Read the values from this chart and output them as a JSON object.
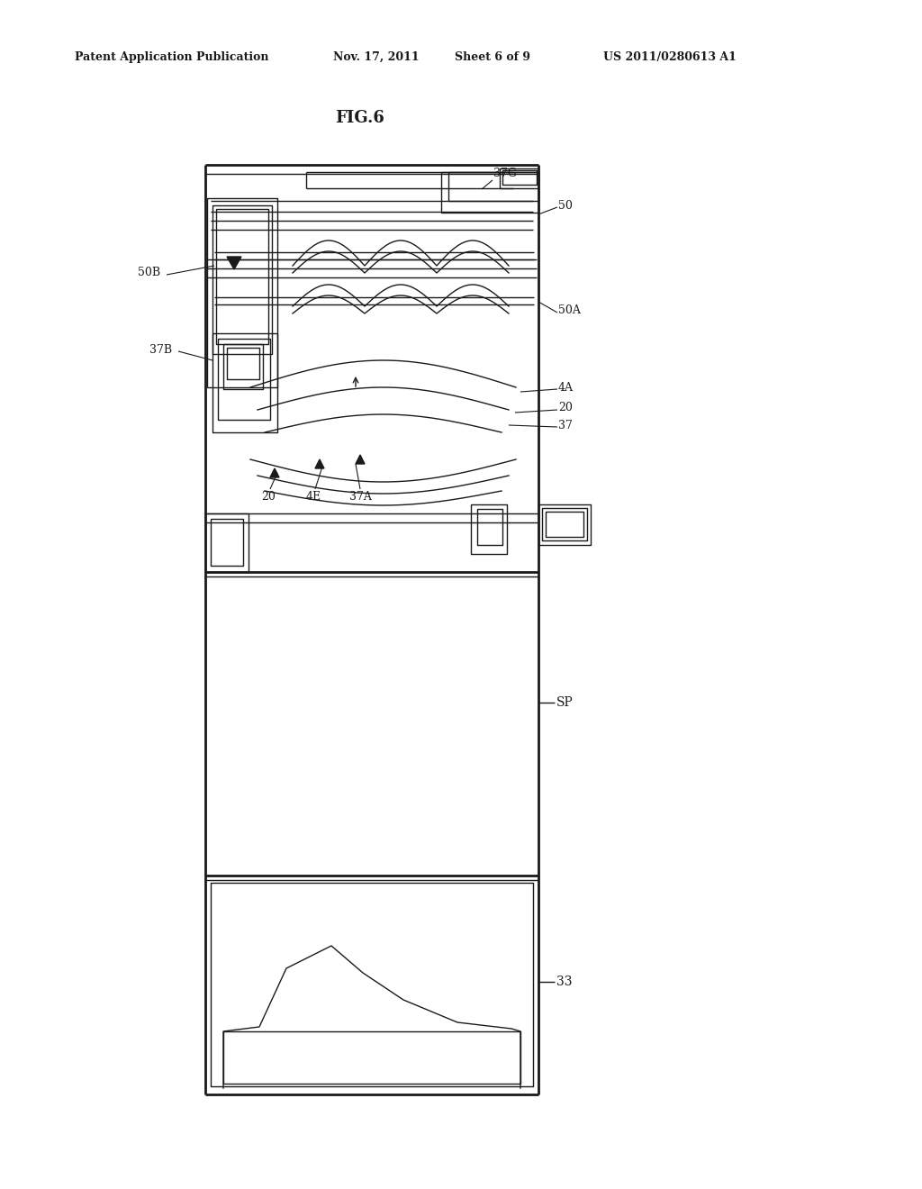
{
  "bg_color": "#ffffff",
  "header_text": "Patent Application Publication",
  "header_date": "Nov. 17, 2011",
  "header_sheet": "Sheet 6 of 9",
  "header_patent": "US 2011/0280613 A1",
  "fig_label": "FIG.6",
  "line_color": "#1a1a1a",
  "lw": 1.0,
  "tlw": 2.0
}
